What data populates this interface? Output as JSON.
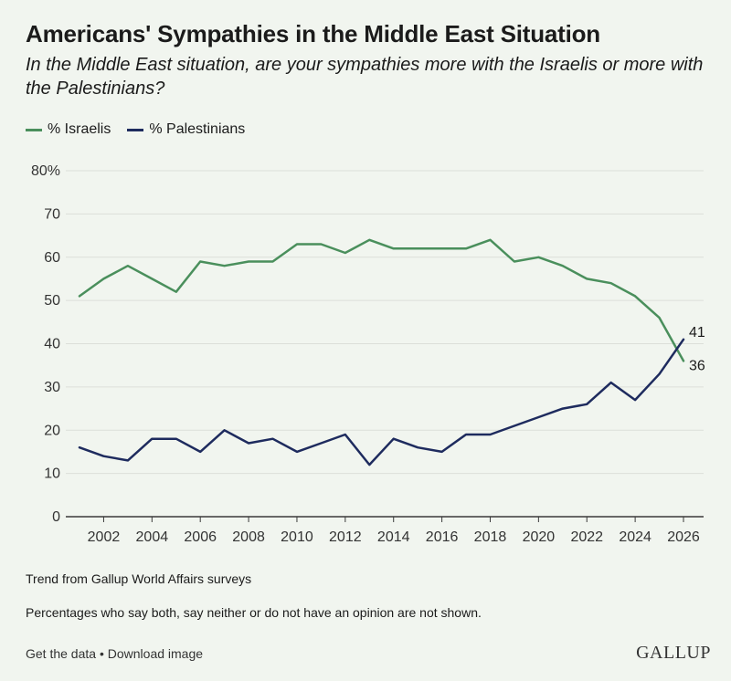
{
  "header": {
    "title": "Americans' Sympathies in the Middle East Situation",
    "subtitle": "In the Middle East situation, are your sympathies more with the Israelis or more with the Palestinians?"
  },
  "legend": {
    "items": [
      {
        "label": "% Israelis",
        "color": "#4a8f5c"
      },
      {
        "label": "% Palestinians",
        "color": "#1e2b5e"
      }
    ]
  },
  "chart_data": {
    "type": "line",
    "title": "Americans' Sympathies in the Middle East Situation",
    "xlabel": "",
    "ylabel": "",
    "ylim": [
      0,
      80
    ],
    "xlim": [
      2001,
      2026
    ],
    "y_ticks": [
      "0",
      "10",
      "20",
      "30",
      "40",
      "50",
      "60",
      "70",
      "80%"
    ],
    "y_tick_values": [
      0,
      10,
      20,
      30,
      40,
      50,
      60,
      70,
      80
    ],
    "x_ticks": [
      2002,
      2004,
      2006,
      2008,
      2010,
      2012,
      2014,
      2016,
      2018,
      2020,
      2022,
      2024,
      2026
    ],
    "grid": true,
    "x": [
      2001,
      2002,
      2003,
      2004,
      2005,
      2006,
      2007,
      2008,
      2009,
      2010,
      2011,
      2012,
      2013,
      2014,
      2015,
      2016,
      2017,
      2018,
      2019,
      2020,
      2021,
      2022,
      2023,
      2024,
      2025,
      2026
    ],
    "series": [
      {
        "name": "% Israelis",
        "color": "#4a8f5c",
        "values": [
          51,
          55,
          58,
          55,
          52,
          59,
          58,
          59,
          59,
          63,
          63,
          61,
          64,
          62,
          62,
          62,
          62,
          64,
          59,
          60,
          58,
          55,
          54,
          51,
          46,
          36
        ],
        "end_label": "36"
      },
      {
        "name": "% Palestinians",
        "color": "#1e2b5e",
        "values": [
          16,
          14,
          13,
          18,
          18,
          15,
          20,
          17,
          18,
          15,
          17,
          19,
          12,
          18,
          16,
          15,
          19,
          19,
          21,
          23,
          25,
          26,
          31,
          27,
          33,
          41
        ],
        "end_label": "41"
      }
    ]
  },
  "notes": {
    "source": "Trend from Gallup World Affairs surveys",
    "disclaimer": "Percentages who say both, say neither or do not have an opinion are not shown."
  },
  "footer": {
    "get_data": "Get the data",
    "separator": "•",
    "download": "Download image",
    "brand": "GALLUP"
  }
}
